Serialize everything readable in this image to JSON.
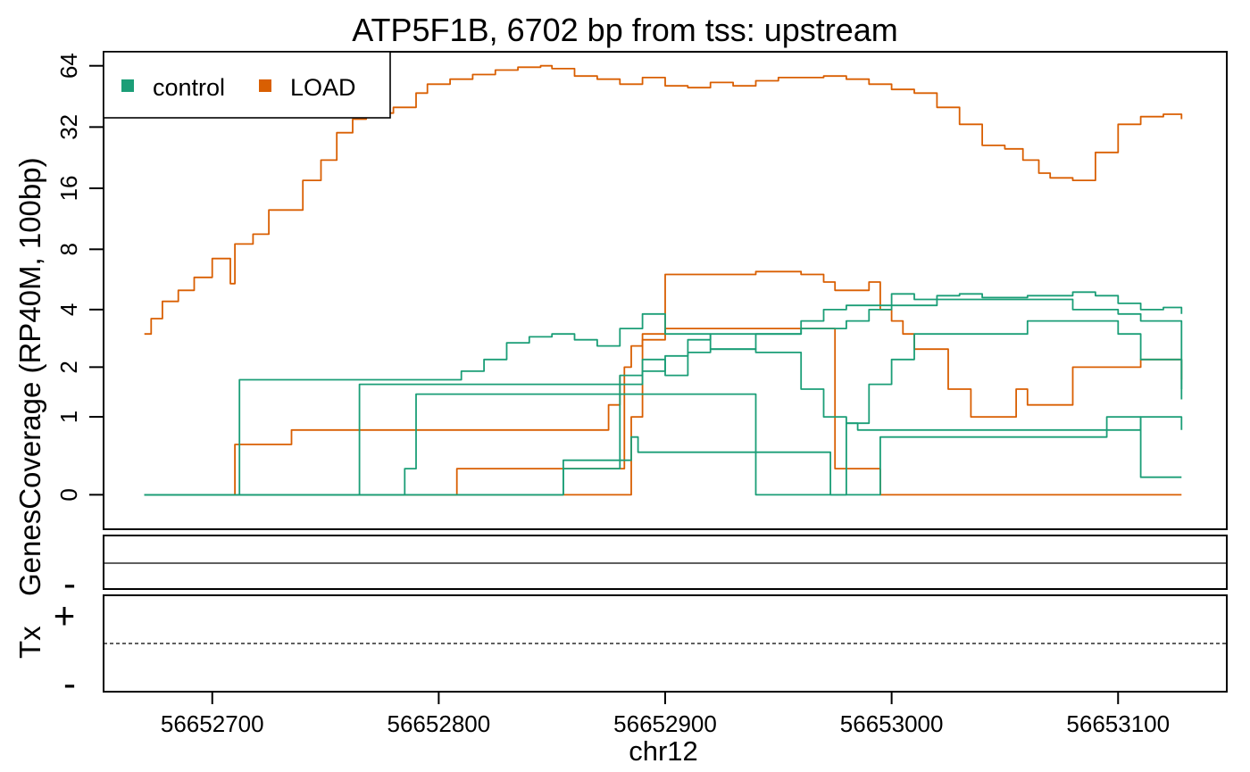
{
  "chart_data": {
    "type": "line",
    "title": "ATP5F1B, 6702 bp from tss: upstream",
    "xlabel": "chr12",
    "ylabel": "GenesCoverage (RP40M, 100bp)",
    "tx_label": "Tx",
    "strand_plus": "+",
    "strand_minus": "-",
    "xlim": [
      56652652,
      56653148
    ],
    "x_ticks": [
      56652700,
      56652800,
      56652900,
      56653000,
      56653100
    ],
    "x_tick_labels": [
      "56652700",
      "56652800",
      "56652900",
      "56653000",
      "56653100"
    ],
    "y_scale": "asinh",
    "ylim": [
      -0.4,
      75
    ],
    "y_ticks": [
      0,
      1,
      2,
      4,
      8,
      16,
      32,
      64
    ],
    "y_tick_labels": [
      "0",
      "1",
      "2",
      "4",
      "8",
      "16",
      "32",
      "64"
    ],
    "legend": {
      "position": "top-left",
      "entries": [
        {
          "label": "control",
          "color": "#1b9e77"
        },
        {
          "label": "LOAD",
          "color": "#d95f02"
        }
      ]
    },
    "series": [
      {
        "group": "LOAD",
        "color": "#d95f02",
        "x": [
          56652670,
          56652673,
          56652678,
          56652685,
          56652692,
          56652700,
          56652705,
          56652708,
          56652710,
          56652718,
          56652725,
          56652730,
          56652740,
          56652748,
          56652755,
          56652762,
          56652768,
          56652772,
          56652780,
          56652790,
          56652795,
          56652805,
          56652815,
          56652825,
          56652835,
          56652845,
          56652850,
          56652860,
          56652870,
          56652880,
          56652890,
          56652900,
          56652910,
          56652920,
          56652930,
          56652940,
          56652950,
          56652960,
          56652970,
          56652980,
          56652990,
          56653000,
          56653010,
          56653020,
          56653030,
          56653040,
          56653050,
          56653058,
          56653065,
          56653070,
          56653080,
          56653090,
          56653100,
          56653110,
          56653120,
          56653128
        ],
        "y": [
          3.0,
          3.6,
          4.4,
          5.0,
          5.8,
          7.2,
          7.2,
          5.4,
          8.5,
          9.5,
          12.5,
          12.5,
          17.5,
          22.0,
          30.0,
          35.0,
          37.0,
          37.5,
          40.0,
          47.0,
          52.0,
          55.0,
          58.0,
          61.0,
          63.0,
          64.0,
          62.0,
          57.0,
          55.0,
          52.0,
          56.0,
          51.0,
          50.0,
          53.0,
          51.0,
          54.0,
          56.0,
          56.0,
          57.0,
          55.0,
          52.0,
          49.0,
          47.0,
          40.0,
          33.0,
          26.0,
          25.0,
          22.0,
          19.0,
          18.0,
          17.5,
          24.0,
          33.0,
          36.0,
          37.0,
          35.0
        ]
      },
      {
        "group": "LOAD",
        "color": "#d95f02",
        "x": [
          56652670,
          56652708,
          56652710,
          56652735,
          56652740,
          56652760,
          56652780,
          56652790,
          56652800,
          56652810,
          56652820,
          56652830,
          56652840,
          56652850,
          56652860,
          56652870,
          56652875,
          56652880
        ],
        "y": [
          0,
          0,
          0.6,
          0.8,
          0.8,
          0.8,
          0.8,
          0.8,
          0.8,
          0.8,
          0.8,
          0.8,
          0.8,
          0.8,
          0.8,
          0.8,
          1.2,
          1.8
        ]
      },
      {
        "group": "LOAD",
        "color": "#d95f02",
        "x": [
          56652670,
          56652800,
          56652808,
          56652812,
          56652830,
          56652850,
          56652860,
          56652870,
          56652875,
          56652882,
          56652885,
          56652890,
          56652900,
          56652920,
          56652940,
          56652960,
          56652970,
          56652975,
          56652990,
          56652995,
          56653000,
          56653005,
          56653010,
          56653020,
          56653025,
          56653030,
          56653035,
          56653040,
          56653055,
          56653060,
          56653070,
          56653080,
          56653090,
          56653100,
          56653110,
          56653120,
          56653128
        ],
        "y": [
          0,
          0,
          0.3,
          0.3,
          0.3,
          0.3,
          0.3,
          0.3,
          0.3,
          2.0,
          2.6,
          3.0,
          6.0,
          6.0,
          6.2,
          6.0,
          5.5,
          5.0,
          5.5,
          4.0,
          3.5,
          3.0,
          2.5,
          2.5,
          1.5,
          1.5,
          1.0,
          1.0,
          1.5,
          1.2,
          1.2,
          2.0,
          2.0,
          2.0,
          2.2,
          2.2,
          1.7
        ]
      },
      {
        "group": "LOAD",
        "color": "#d95f02",
        "x": [
          56652670,
          56652880,
          56652885,
          56652890,
          56652900,
          56652920,
          56652940,
          56652960,
          56652970,
          56652975,
          56652990,
          56652995,
          56653000,
          56653010,
          56653020,
          56653030,
          56653040,
          56653050,
          56653060,
          56653070,
          56653080,
          56653090,
          56653100,
          56653110,
          56653120,
          56653128
        ],
        "y": [
          0,
          0,
          1.0,
          2.8,
          3.2,
          3.2,
          3.2,
          3.2,
          3.2,
          0.3,
          0.3,
          0,
          0,
          0,
          0,
          0,
          0,
          0,
          0,
          0,
          0,
          0,
          0,
          0,
          0,
          0
        ]
      },
      {
        "group": "control",
        "color": "#1b9e77",
        "x": [
          56652670,
          56652710,
          56652712,
          56652720,
          56652740,
          56652760,
          56652780,
          56652800,
          56652808,
          56652810,
          56652820,
          56652830,
          56652840,
          56652850,
          56652860,
          56652870,
          56652880,
          56652890,
          56652900,
          56652920,
          56652940,
          56652960,
          56652970,
          56652980,
          56652990,
          56653000,
          56653010,
          56653020,
          56653030,
          56653040,
          56653060,
          56653080,
          56653090,
          56653100,
          56653110,
          56653120,
          56653128
        ],
        "y": [
          0,
          0,
          1.7,
          1.7,
          1.7,
          1.7,
          1.7,
          1.7,
          1.7,
          1.9,
          2.2,
          2.7,
          2.9,
          3.0,
          2.8,
          2.6,
          3.2,
          3.8,
          3.0,
          2.5,
          3.0,
          3.5,
          4.0,
          4.2,
          4.2,
          4.8,
          4.5,
          4.7,
          4.8,
          4.6,
          4.7,
          4.9,
          4.7,
          4.3,
          4.0,
          4.1,
          3.8
        ]
      },
      {
        "group": "control",
        "color": "#1b9e77",
        "x": [
          56652670,
          56652762,
          56652765,
          56652775,
          56652790,
          56652810,
          56652830,
          56652850,
          56652870,
          56652880,
          56652890,
          56652900,
          56652910,
          56652920,
          56652940,
          56652960,
          56652980,
          56652990,
          56653000,
          56653020,
          56653040,
          56653060,
          56653080,
          56653100,
          56653110,
          56653120,
          56653128
        ],
        "y": [
          0,
          0,
          1.6,
          1.6,
          1.6,
          1.6,
          1.6,
          1.6,
          1.6,
          1.6,
          1.9,
          2.3,
          2.8,
          3.0,
          3.0,
          3.2,
          3.5,
          4.0,
          4.2,
          4.5,
          4.5,
          4.5,
          4.0,
          3.8,
          3.5,
          3.5,
          1.3
        ]
      },
      {
        "group": "control",
        "color": "#1b9e77",
        "x": [
          56652670,
          56652775,
          56652785,
          56652790,
          56652800,
          56652820,
          56652840,
          56652860,
          56652880,
          56652890,
          56652900,
          56652920,
          56652935,
          56652940,
          56652960,
          56652980,
          56652990,
          56653000,
          56653010,
          56653040,
          56653060,
          56653080,
          56653100,
          56653110,
          56653128
        ],
        "y": [
          0,
          0,
          0.3,
          1.4,
          1.4,
          1.4,
          1.4,
          1.4,
          1.4,
          1.4,
          1.4,
          1.4,
          1.4,
          0,
          0,
          0.9,
          1.6,
          2.2,
          3.0,
          3.0,
          3.5,
          3.5,
          3.0,
          2.2,
          1.5
        ]
      },
      {
        "group": "control",
        "color": "#1b9e77",
        "x": [
          56652670,
          56652790,
          56652830,
          56652850,
          56652855,
          56652880,
          56652885,
          56652888,
          56652900,
          56652940,
          56652960,
          56652970,
          56652973,
          56652990,
          56652995,
          56653010,
          56653020,
          56653040,
          56653060,
          56653090,
          56653095,
          56653100,
          56653110,
          56653128
        ],
        "y": [
          0,
          0,
          0,
          0,
          0.4,
          0.4,
          0.7,
          0.5,
          0.5,
          0.5,
          0.5,
          0.5,
          0,
          0,
          0.7,
          0.7,
          0.7,
          0.7,
          0.7,
          0.7,
          1.0,
          1.0,
          0.2,
          0.2
        ]
      },
      {
        "group": "control",
        "color": "#1b9e77",
        "x": [
          56652670,
          56652800,
          56652850,
          56652855,
          56652875,
          56652880,
          56652890,
          56652900,
          56652910,
          56652920,
          56652940,
          56652960,
          56652970,
          56652975,
          56652980,
          56652985,
          56653000,
          56653020,
          56653040,
          56653060,
          56653080,
          56653100,
          56653110,
          56653128
        ],
        "y": [
          0,
          0,
          0,
          0.3,
          0.3,
          1.8,
          2.2,
          1.8,
          2.4,
          2.5,
          2.4,
          1.5,
          1.0,
          1.0,
          0.9,
          0.8,
          0.8,
          0.8,
          0.8,
          0.8,
          0.8,
          0.8,
          1.0,
          0.8
        ]
      }
    ]
  }
}
